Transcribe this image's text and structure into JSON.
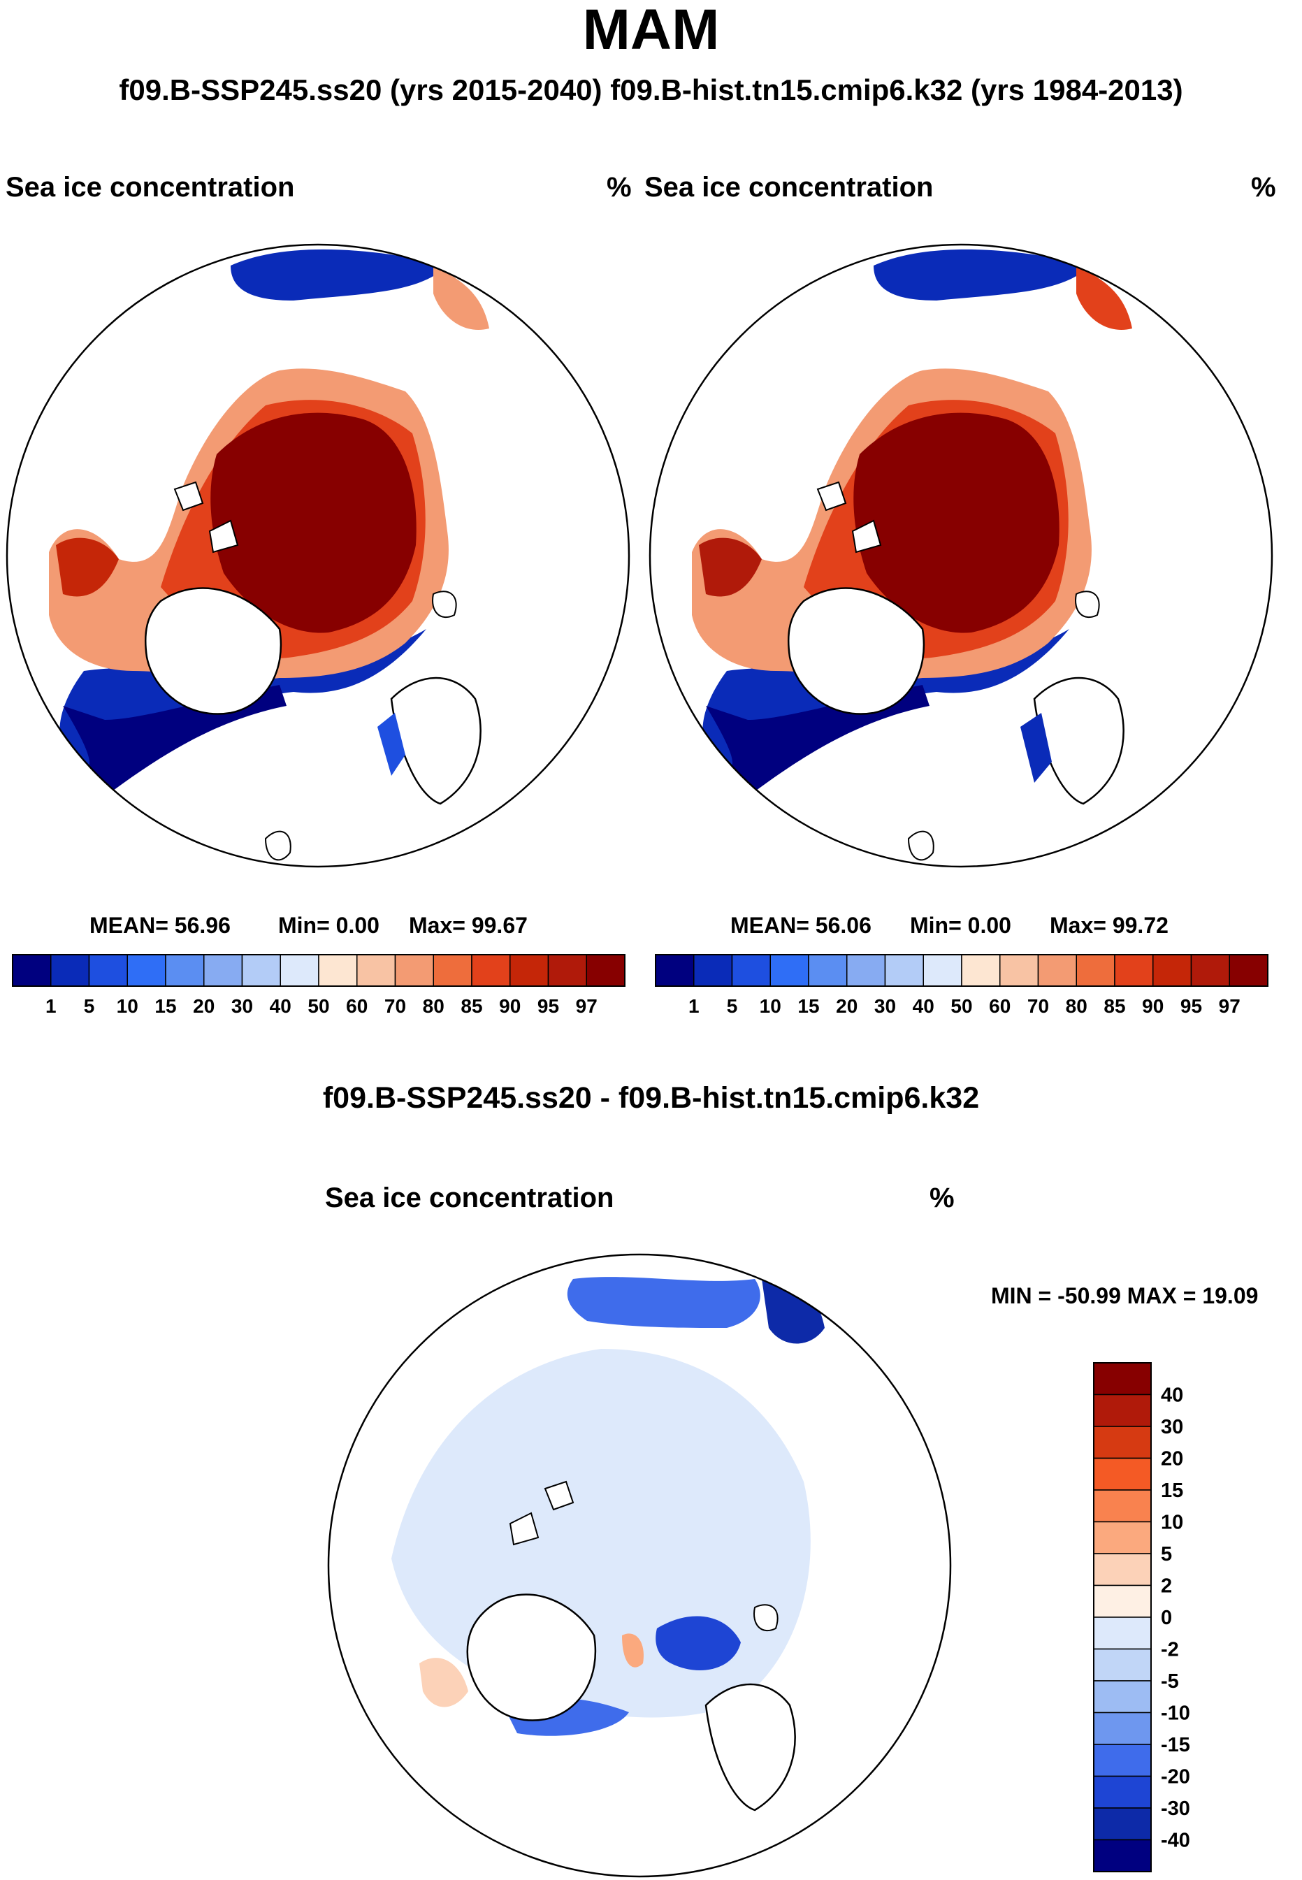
{
  "title": "MAM",
  "subtitle": "f09.B-SSP245.ss20 (yrs 2015-2040)  f09.B-hist.tn15.cmip6.k32 (yrs 1984-2013)",
  "chart_data": [
    {
      "type": "heatmap",
      "name": "f09.B-SSP245.ss20",
      "variable": "Sea ice concentration",
      "units": "%",
      "stats": {
        "mean": "MEAN=  56.96",
        "min": "Min=   0.00",
        "max": "Max=  99.67"
      },
      "levels": [
        "1",
        "5",
        "10",
        "15",
        "20",
        "30",
        "40",
        "50",
        "60",
        "70",
        "80",
        "85",
        "90",
        "95",
        "97"
      ],
      "colors": [
        "#00007f",
        "#0a2bb8",
        "#1e4fe0",
        "#2f6ef6",
        "#5b8ef2",
        "#87abf2",
        "#b3ccf7",
        "#dde9fb",
        "#fde6d2",
        "#f8c3a4",
        "#f39b73",
        "#ee6d3c",
        "#e2411b",
        "#c52608",
        "#b01a0a",
        "#870000"
      ]
    },
    {
      "type": "heatmap",
      "name": "f09.B-hist.tn15.cmip6.k32",
      "variable": "Sea ice concentration",
      "units": "%",
      "stats": {
        "mean": "MEAN=  56.06",
        "min": "Min=   0.00",
        "max": "Max=  99.72"
      },
      "levels": [
        "1",
        "5",
        "10",
        "15",
        "20",
        "30",
        "40",
        "50",
        "60",
        "70",
        "80",
        "85",
        "90",
        "95",
        "97"
      ],
      "colors": [
        "#00007f",
        "#0a2bb8",
        "#1e4fe0",
        "#2f6ef6",
        "#5b8ef2",
        "#87abf2",
        "#b3ccf7",
        "#dde9fb",
        "#fde6d2",
        "#f8c3a4",
        "#f39b73",
        "#ee6d3c",
        "#e2411b",
        "#c52608",
        "#b01a0a",
        "#870000"
      ]
    },
    {
      "type": "heatmap",
      "name": "f09.B-SSP245.ss20 - f09.B-hist.tn15.cmip6.k32",
      "variable": "Sea ice concentration",
      "units": "%",
      "minmax": "MIN = -50.99 MAX =  19.09",
      "levels": [
        "40",
        "30",
        "20",
        "15",
        "10",
        "5",
        "2",
        "0",
        "-2",
        "-5",
        "-10",
        "-15",
        "-20",
        "-30",
        "-40"
      ],
      "colors": [
        "#870000",
        "#b01a0a",
        "#d63a12",
        "#f45a25",
        "#f9824f",
        "#fba97e",
        "#fcd2b8",
        "#fef0e4",
        "#dde9fb",
        "#c1d6f7",
        "#9dbcf3",
        "#6e97ef",
        "#3f6ceb",
        "#1e45d4",
        "#0d2aa8",
        "#000080"
      ]
    }
  ],
  "labels": {
    "diff_title": "f09.B-SSP245.ss20 - f09.B-hist.tn15.cmip6.k32"
  }
}
